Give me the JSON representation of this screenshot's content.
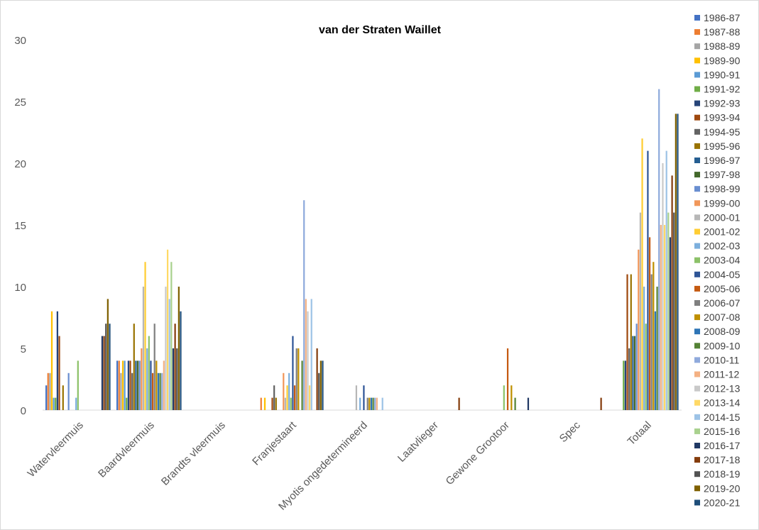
{
  "chart_data": {
    "type": "bar",
    "title": "van der Straten Waillet",
    "xlabel": "",
    "ylabel": "",
    "ylim": [
      0,
      30
    ],
    "yticks": [
      0,
      5,
      10,
      15,
      20,
      25,
      30
    ],
    "grid": false,
    "legend_position": "right",
    "categories": [
      "Watervleermuis",
      "Baardvleermuis",
      "Brandts vleermuis",
      "Franjestaart",
      "Myotis ongedetermineerd",
      "Laatvlieger",
      "Gewone Grootoor",
      "Spec",
      "Totaal"
    ],
    "series": [
      {
        "name": "1986-87",
        "color": "#4472c4",
        "values": [
          2,
          4,
          0,
          0,
          0,
          0,
          0,
          0,
          0
        ]
      },
      {
        "name": "1987-88",
        "color": "#ed7d31",
        "values": [
          3,
          4,
          0,
          1,
          0,
          0,
          0,
          0,
          0
        ]
      },
      {
        "name": "1988-89",
        "color": "#a5a5a5",
        "values": [
          3,
          3,
          0,
          0,
          0,
          0,
          0,
          0,
          0
        ]
      },
      {
        "name": "1989-90",
        "color": "#ffc000",
        "values": [
          8,
          4,
          0,
          1,
          0,
          0,
          0,
          0,
          0
        ]
      },
      {
        "name": "1990-91",
        "color": "#5b9bd5",
        "values": [
          1,
          4,
          0,
          0,
          0,
          0,
          0,
          0,
          0
        ]
      },
      {
        "name": "1991-92",
        "color": "#70ad47",
        "values": [
          1,
          1,
          0,
          0,
          0,
          0,
          0,
          0,
          4
        ]
      },
      {
        "name": "1992-93",
        "color": "#264478",
        "values": [
          8,
          4,
          0,
          0,
          0,
          0,
          0,
          0,
          4
        ]
      },
      {
        "name": "1993-94",
        "color": "#9e480e",
        "values": [
          6,
          4,
          0,
          1,
          0,
          0,
          0,
          0,
          11
        ]
      },
      {
        "name": "1994-95",
        "color": "#636363",
        "values": [
          0,
          3,
          0,
          2,
          0,
          0,
          0,
          0,
          5
        ]
      },
      {
        "name": "1995-96",
        "color": "#997300",
        "values": [
          2,
          7,
          0,
          1,
          0,
          0,
          0,
          0,
          11
        ]
      },
      {
        "name": "1996-97",
        "color": "#255e91",
        "values": [
          0,
          4,
          0,
          0,
          0,
          0,
          0,
          0,
          6
        ]
      },
      {
        "name": "1997-98",
        "color": "#43682b",
        "values": [
          0,
          4,
          0,
          0,
          0,
          0,
          0,
          0,
          6
        ]
      },
      {
        "name": "1998-99",
        "color": "#698ed0",
        "values": [
          3,
          4,
          0,
          0,
          0,
          0,
          0,
          0,
          7
        ]
      },
      {
        "name": "1999-00",
        "color": "#f1975a",
        "values": [
          0,
          5,
          0,
          3,
          0,
          0,
          0,
          0,
          13
        ]
      },
      {
        "name": "2000-01",
        "color": "#b7b7b7",
        "values": [
          0,
          10,
          0,
          1,
          2,
          0,
          0,
          0,
          16
        ]
      },
      {
        "name": "2001-02",
        "color": "#ffcd33",
        "values": [
          0,
          12,
          0,
          2,
          0,
          0,
          0,
          0,
          22
        ]
      },
      {
        "name": "2002-03",
        "color": "#7cafdd",
        "values": [
          1,
          5,
          0,
          3,
          1,
          0,
          0,
          0,
          10
        ]
      },
      {
        "name": "2003-04",
        "color": "#8cc168",
        "values": [
          4,
          6,
          0,
          1,
          0,
          0,
          2,
          0,
          7
        ]
      },
      {
        "name": "2004-05",
        "color": "#2f5597",
        "values": [
          0,
          4,
          0,
          6,
          2,
          0,
          0,
          0,
          21
        ]
      },
      {
        "name": "2005-06",
        "color": "#c55a11",
        "values": [
          0,
          3,
          0,
          2,
          0,
          0,
          5,
          0,
          14
        ]
      },
      {
        "name": "2006-07",
        "color": "#7f7f7f",
        "values": [
          0,
          7,
          0,
          5,
          1,
          0,
          0,
          0,
          11
        ]
      },
      {
        "name": "2007-08",
        "color": "#bf9000",
        "values": [
          0,
          4,
          0,
          5,
          1,
          0,
          2,
          0,
          12
        ]
      },
      {
        "name": "2008-09",
        "color": "#2e75b6",
        "values": [
          0,
          3,
          0,
          0,
          1,
          0,
          0,
          0,
          8
        ]
      },
      {
        "name": "2009-10",
        "color": "#548235",
        "values": [
          0,
          3,
          0,
          4,
          1,
          0,
          1,
          0,
          10
        ]
      },
      {
        "name": "2010-11",
        "color": "#8faadc",
        "values": [
          0,
          3,
          0,
          17,
          1,
          0,
          0,
          0,
          26
        ]
      },
      {
        "name": "2011-12",
        "color": "#f4b183",
        "values": [
          0,
          4,
          0,
          9,
          1,
          0,
          0,
          0,
          15
        ]
      },
      {
        "name": "2012-13",
        "color": "#c9c9c9",
        "values": [
          0,
          10,
          0,
          8,
          0,
          0,
          0,
          0,
          20
        ]
      },
      {
        "name": "2013-14",
        "color": "#ffd966",
        "values": [
          0,
          13,
          0,
          2,
          0,
          0,
          0,
          0,
          15
        ]
      },
      {
        "name": "2014-15",
        "color": "#9dc3e6",
        "values": [
          0,
          9,
          0,
          9,
          1,
          0,
          0,
          0,
          21
        ]
      },
      {
        "name": "2015-16",
        "color": "#a9d18e",
        "values": [
          0,
          12,
          0,
          0,
          0,
          0,
          0,
          0,
          16
        ]
      },
      {
        "name": "2016-17",
        "color": "#203864",
        "values": [
          6,
          5,
          0,
          0,
          0,
          0,
          1,
          0,
          14
        ]
      },
      {
        "name": "2017-18",
        "color": "#843c0c",
        "values": [
          6,
          7,
          0,
          5,
          0,
          1,
          0,
          1,
          19
        ]
      },
      {
        "name": "2018-19",
        "color": "#525252",
        "values": [
          7,
          5,
          0,
          3,
          0,
          0,
          0,
          0,
          16
        ]
      },
      {
        "name": "2019-20",
        "color": "#7f6000",
        "values": [
          9,
          10,
          0,
          4,
          0,
          0,
          0,
          0,
          24
        ]
      },
      {
        "name": "2020-21",
        "color": "#1f4e79",
        "values": [
          7,
          8,
          0,
          4,
          0,
          0,
          0,
          0,
          24
        ]
      }
    ]
  }
}
